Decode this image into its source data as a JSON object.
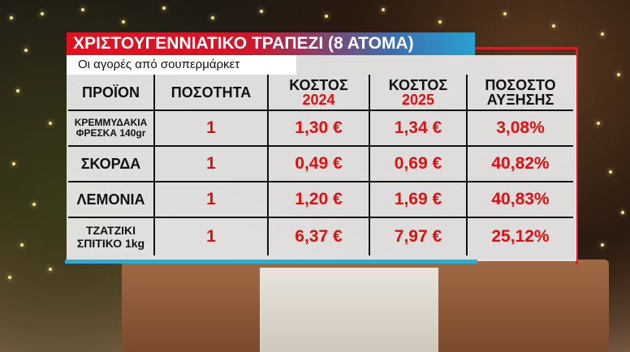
{
  "title": "ΧΡΙΣΤΟΥΓΕΝΝΙΑΤΙΚΟ ΤΡΑΠΕΖΙ (8 ΑΤΟΜΑ)",
  "subtitle": "Οι αγορές από σουπερμάρκετ",
  "headers": {
    "product": "ΠΡΟΪΟΝ",
    "quantity": "ΠΟΣΟΤΗΤΑ",
    "cost": "ΚΟΣΤΟΣ",
    "year1": "2024",
    "year2": "2025",
    "pct1": "ΠΟΣΟΣΤΟ",
    "pct2": "ΑΥΞΗΣΗΣ"
  },
  "rows": [
    {
      "product1": "ΚΡΕΜΜΥΔΑΚΙΑ",
      "product2": "ΦΡΕΣΚΑ 140gr",
      "qty": "1",
      "c2024": "1,30 €",
      "c2025": "1,34 €",
      "pct": "3,08%"
    },
    {
      "product1": "ΣΚΟΡΔΑ",
      "product2": "",
      "qty": "1",
      "c2024": "0,49 €",
      "c2025": "0,69 €",
      "pct": "40,82%"
    },
    {
      "product1": "ΛΕΜΟΝΙΑ",
      "product2": "",
      "qty": "1",
      "c2024": "1,20 €",
      "c2025": "1,69 €",
      "pct": "40,83%"
    },
    {
      "product1": "ΤΖΑΤΖΙΚΙ",
      "product2": "ΣΠΙΤΙΚΟ 1kg",
      "qty": "1",
      "c2024": "6,37 €",
      "c2025": "7,97 €",
      "pct": "25,12%"
    }
  ],
  "colors": {
    "accent_red": "#e01010",
    "title_red": "#e0121e",
    "title_blue": "#2aa0cf",
    "border_red": "#d0202a",
    "cyan": "#3aa7c9"
  }
}
